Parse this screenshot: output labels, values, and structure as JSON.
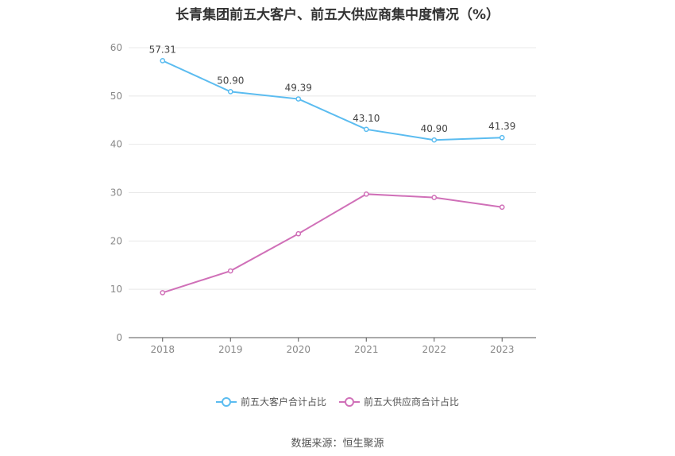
{
  "chart_data": {
    "type": "line",
    "title": "长青集团前五大客户、前五大供应商集中度情况（%）",
    "categories": [
      "2018",
      "2019",
      "2020",
      "2021",
      "2022",
      "2023"
    ],
    "ylim": [
      0,
      60
    ],
    "yticks": [
      0,
      10,
      20,
      30,
      40,
      50,
      60
    ],
    "grid": true,
    "legend_position": "bottom",
    "series": [
      {
        "name": "前五大客户合计占比",
        "values": [
          57.31,
          50.9,
          49.39,
          43.1,
          40.9,
          41.39
        ],
        "labels": [
          "57.31",
          "50.90",
          "49.39",
          "43.10",
          "40.90",
          "41.39"
        ],
        "show_labels": true,
        "color": "#5bbcf0"
      },
      {
        "name": "前五大供应商合计占比",
        "values": [
          9.3,
          13.8,
          21.5,
          29.7,
          29.0,
          27.0
        ],
        "show_labels": false,
        "color": "#d070b8"
      }
    ]
  },
  "source": "数据来源：恒生聚源"
}
